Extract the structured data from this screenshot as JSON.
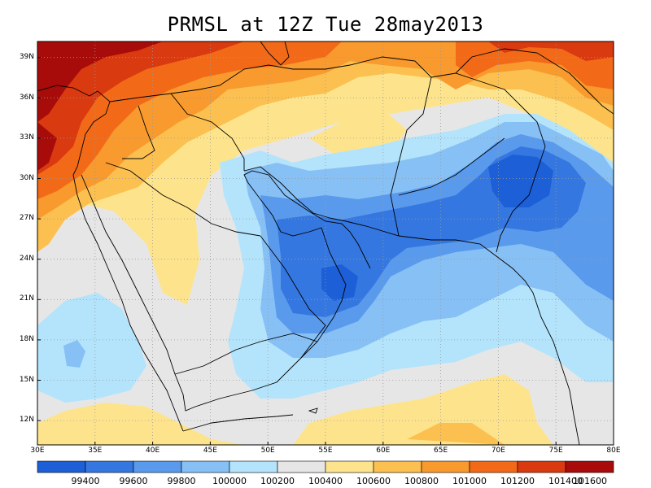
{
  "title": "PRMSL at 12Z Tue 28may2013",
  "lat_labels": [
    "39N",
    "36N",
    "33N",
    "30N",
    "27N",
    "24N",
    "21N",
    "18N",
    "15N",
    "12N"
  ],
  "lon_labels": [
    "30E",
    "35E",
    "40E",
    "45E",
    "50E",
    "55E",
    "60E",
    "65E",
    "70E",
    "75E",
    "80E"
  ],
  "colorbar": {
    "colors": [
      "#1c5fd6",
      "#3577e0",
      "#5a9aec",
      "#87c0f5",
      "#b3e4fb",
      "#e6e6e6",
      "#fde48c",
      "#fbc050",
      "#f89a2d",
      "#f26a18",
      "#d93a10",
      "#a80c0a"
    ],
    "labels": [
      "99400",
      "99600",
      "99800",
      "100000",
      "100200",
      "100400",
      "100600",
      "100800",
      "101000",
      "101200",
      "101400",
      "101600"
    ]
  },
  "map": {
    "region": "Middle East / Arabian Peninsula",
    "lon_range": [
      30,
      80
    ],
    "lat_range": [
      10,
      40
    ],
    "variable": "PRMSL",
    "units_hint": "Pa",
    "high_pressure_areas": [
      "northwest (Turkey / Levant)",
      "north (Caspian / Central Asia)"
    ],
    "low_pressure_areas": [
      "Pakistan / NW India",
      "Oman / Persian Gulf"
    ]
  }
}
